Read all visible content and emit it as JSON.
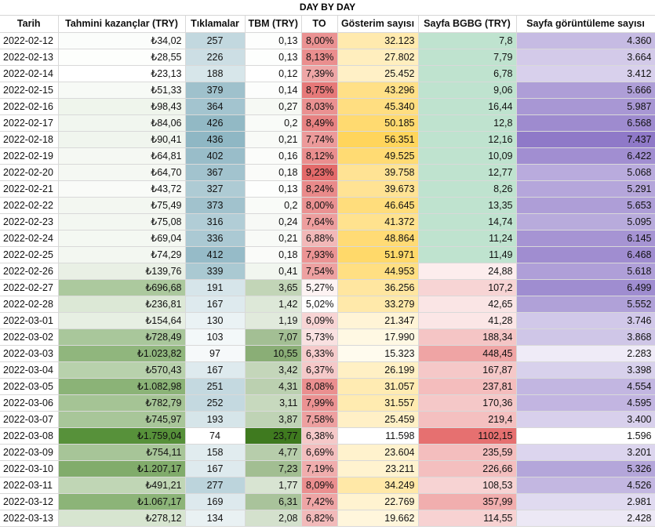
{
  "title": "DAY BY DAY",
  "columns": [
    "Tarih",
    "Tahmini kazançlar (TRY)",
    "Tıklamalar",
    "TBM (TRY)",
    "TO",
    "Gösterim sayısı",
    "Sayfa BGBG (TRY)",
    "Sayfa görüntüleme sayısı"
  ],
  "rows": [
    {
      "date": "2022-02-12",
      "earn": "₺34,02",
      "clicks": "257",
      "tbm": "0,13",
      "to": "8,00%",
      "imp": "32.123",
      "rpm": "7,8",
      "pv": "4.360"
    },
    {
      "date": "2022-02-13",
      "earn": "₺28,55",
      "clicks": "226",
      "tbm": "0,13",
      "to": "8,13%",
      "imp": "27.802",
      "rpm": "7,79",
      "pv": "3.664"
    },
    {
      "date": "2022-02-14",
      "earn": "₺23,13",
      "clicks": "188",
      "tbm": "0,12",
      "to": "7,39%",
      "imp": "25.452",
      "rpm": "6,78",
      "pv": "3.412"
    },
    {
      "date": "2022-02-15",
      "earn": "₺51,33",
      "clicks": "379",
      "tbm": "0,14",
      "to": "8,75%",
      "imp": "43.296",
      "rpm": "9,06",
      "pv": "5.666"
    },
    {
      "date": "2022-02-16",
      "earn": "₺98,43",
      "clicks": "364",
      "tbm": "0,27",
      "to": "8,03%",
      "imp": "45.340",
      "rpm": "16,44",
      "pv": "5.987"
    },
    {
      "date": "2022-02-17",
      "earn": "₺84,06",
      "clicks": "426",
      "tbm": "0,2",
      "to": "8,49%",
      "imp": "50.185",
      "rpm": "12,8",
      "pv": "6.568"
    },
    {
      "date": "2022-02-18",
      "earn": "₺90,41",
      "clicks": "436",
      "tbm": "0,21",
      "to": "7,74%",
      "imp": "56.351",
      "rpm": "12,16",
      "pv": "7.437"
    },
    {
      "date": "2022-02-19",
      "earn": "₺64,81",
      "clicks": "402",
      "tbm": "0,16",
      "to": "8,12%",
      "imp": "49.525",
      "rpm": "10,09",
      "pv": "6.422"
    },
    {
      "date": "2022-02-20",
      "earn": "₺64,70",
      "clicks": "367",
      "tbm": "0,18",
      "to": "9,23%",
      "imp": "39.758",
      "rpm": "12,77",
      "pv": "5.068"
    },
    {
      "date": "2022-02-21",
      "earn": "₺43,72",
      "clicks": "327",
      "tbm": "0,13",
      "to": "8,24%",
      "imp": "39.673",
      "rpm": "8,26",
      "pv": "5.291"
    },
    {
      "date": "2022-02-22",
      "earn": "₺75,49",
      "clicks": "373",
      "tbm": "0,2",
      "to": "8,00%",
      "imp": "46.645",
      "rpm": "13,35",
      "pv": "5.653"
    },
    {
      "date": "2022-02-23",
      "earn": "₺75,08",
      "clicks": "316",
      "tbm": "0,24",
      "to": "7,64%",
      "imp": "41.372",
      "rpm": "14,74",
      "pv": "5.095"
    },
    {
      "date": "2022-02-24",
      "earn": "₺69,04",
      "clicks": "336",
      "tbm": "0,21",
      "to": "6,88%",
      "imp": "48.864",
      "rpm": "11,24",
      "pv": "6.145"
    },
    {
      "date": "2022-02-25",
      "earn": "₺74,29",
      "clicks": "412",
      "tbm": "0,18",
      "to": "7,93%",
      "imp": "51.971",
      "rpm": "11,49",
      "pv": "6.468"
    },
    {
      "date": "2022-02-26",
      "earn": "₺139,76",
      "clicks": "339",
      "tbm": "0,41",
      "to": "7,54%",
      "imp": "44.953",
      "rpm": "24,88",
      "pv": "5.618"
    },
    {
      "date": "2022-02-27",
      "earn": "₺696,68",
      "clicks": "191",
      "tbm": "3,65",
      "to": "5,27%",
      "imp": "36.256",
      "rpm": "107,2",
      "pv": "6.499"
    },
    {
      "date": "2022-02-28",
      "earn": "₺236,81",
      "clicks": "167",
      "tbm": "1,42",
      "to": "5,02%",
      "imp": "33.279",
      "rpm": "42,65",
      "pv": "5.552"
    },
    {
      "date": "2022-03-01",
      "earn": "₺154,64",
      "clicks": "130",
      "tbm": "1,19",
      "to": "6,09%",
      "imp": "21.347",
      "rpm": "41,28",
      "pv": "3.746"
    },
    {
      "date": "2022-03-02",
      "earn": "₺728,49",
      "clicks": "103",
      "tbm": "7,07",
      "to": "5,73%",
      "imp": "17.990",
      "rpm": "188,34",
      "pv": "3.868"
    },
    {
      "date": "2022-03-03",
      "earn": "₺1.023,82",
      "clicks": "97",
      "tbm": "10,55",
      "to": "6,33%",
      "imp": "15.323",
      "rpm": "448,45",
      "pv": "2.283"
    },
    {
      "date": "2022-03-04",
      "earn": "₺570,43",
      "clicks": "167",
      "tbm": "3,42",
      "to": "6,37%",
      "imp": "26.199",
      "rpm": "167,87",
      "pv": "3.398"
    },
    {
      "date": "2022-03-05",
      "earn": "₺1.082,98",
      "clicks": "251",
      "tbm": "4,31",
      "to": "8,08%",
      "imp": "31.057",
      "rpm": "237,81",
      "pv": "4.554"
    },
    {
      "date": "2022-03-06",
      "earn": "₺782,79",
      "clicks": "252",
      "tbm": "3,11",
      "to": "7,99%",
      "imp": "31.557",
      "rpm": "170,36",
      "pv": "4.595"
    },
    {
      "date": "2022-03-07",
      "earn": "₺745,97",
      "clicks": "193",
      "tbm": "3,87",
      "to": "7,58%",
      "imp": "25.459",
      "rpm": "219,4",
      "pv": "3.400"
    },
    {
      "date": "2022-03-08",
      "earn": "₺1.759,04",
      "clicks": "74",
      "tbm": "23,77",
      "to": "6,38%",
      "imp": "11.598",
      "rpm": "1102,15",
      "pv": "1.596"
    },
    {
      "date": "2022-03-09",
      "earn": "₺754,11",
      "clicks": "158",
      "tbm": "4,77",
      "to": "6,69%",
      "imp": "23.604",
      "rpm": "235,59",
      "pv": "3.201"
    },
    {
      "date": "2022-03-10",
      "earn": "₺1.207,17",
      "clicks": "167",
      "tbm": "7,23",
      "to": "7,19%",
      "imp": "23.211",
      "rpm": "226,66",
      "pv": "5.326"
    },
    {
      "date": "2022-03-11",
      "earn": "₺491,21",
      "clicks": "277",
      "tbm": "1,77",
      "to": "8,09%",
      "imp": "34.249",
      "rpm": "108,53",
      "pv": "4.526"
    },
    {
      "date": "2022-03-12",
      "earn": "₺1.067,17",
      "clicks": "169",
      "tbm": "6,31",
      "to": "7,42%",
      "imp": "22.769",
      "rpm": "357,99",
      "pv": "2.981"
    },
    {
      "date": "2022-03-13",
      "earn": "₺278,12",
      "clicks": "134",
      "tbm": "2,08",
      "to": "6,82%",
      "imp": "19.662",
      "rpm": "114,55",
      "pv": "2.428"
    }
  ]
}
